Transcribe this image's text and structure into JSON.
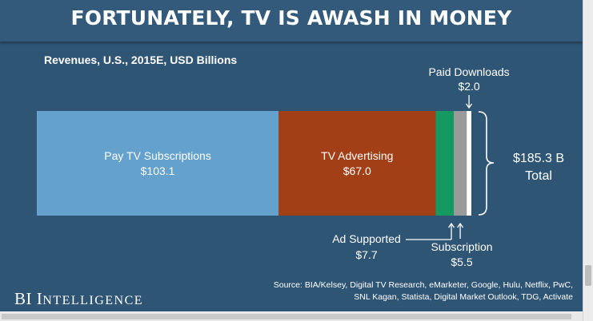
{
  "title": "FORTUNATELY, TV IS AWASH IN MONEY",
  "subtitle": "Revenues, U.S., 2015E, USD Billions",
  "chart_data": {
    "type": "bar",
    "orientation": "horizontal-stacked",
    "title": "FORTUNATELY, TV IS AWASH IN MONEY",
    "subtitle": "Revenues, U.S., 2015E, USD Billions",
    "unit": "USD Billions",
    "series": [
      {
        "name": "Pay TV Subscriptions",
        "value": 103.1,
        "label": "$103.1",
        "color": "#64a1cd"
      },
      {
        "name": "TV Advertising",
        "value": 67.0,
        "label": "$67.0",
        "color": "#a33f17"
      },
      {
        "name": "Ad Supported",
        "value": 7.7,
        "label": "$7.7",
        "color": "#149a61"
      },
      {
        "name": "Subscription",
        "value": 5.5,
        "label": "$5.5",
        "color": "#9a9a9a"
      },
      {
        "name": "Paid Downloads",
        "value": 2.0,
        "label": "$2.0",
        "color": "#ffffff"
      }
    ],
    "total": {
      "value": 185.3,
      "label": "$185.3 B",
      "caption": "Total"
    }
  },
  "brand": {
    "part1": "BI",
    "part2_initial": "I",
    "part2_rest": "NTELLIGENCE"
  },
  "source": {
    "line1": "Source: BIA/Kelsey, Digital TV Research, eMarketer, Google, Hulu, Netflix, PwC,",
    "line2": "SNL Kagan, Statista, Digital Market Outlook, TDG, Activate"
  },
  "colors": {
    "background": "#2f5575",
    "title_bar": "#335a7b",
    "text": "#ffffff"
  }
}
